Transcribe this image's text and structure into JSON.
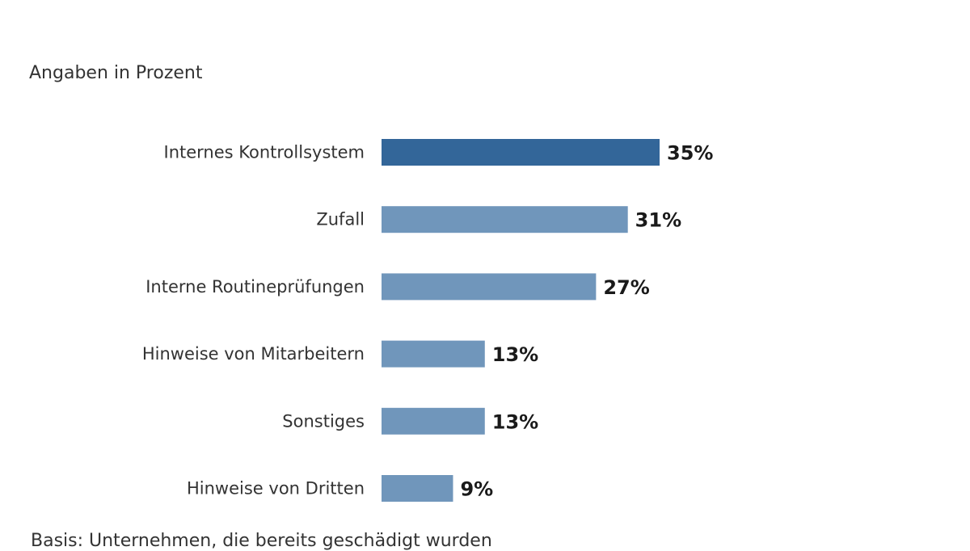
{
  "chart_data": {
    "type": "bar",
    "orientation": "horizontal",
    "subtitle": "Angaben in Prozent",
    "categories": [
      "Internes Kontrollsystem",
      "Zufall",
      "Interne Routineprüfungen",
      "Hinweise von Mitarbeitern",
      "Sonstiges",
      "Hinweise von Dritten"
    ],
    "values": [
      35,
      31,
      27,
      13,
      13,
      9
    ],
    "data_labels": [
      "35%",
      "31%",
      "27%",
      "13%",
      "13%",
      "9%"
    ],
    "xlim": [
      0,
      35
    ],
    "grid": false,
    "colors": {
      "highlight": "#336699",
      "default": "#7096bb"
    },
    "footnote": "Basis: Unternehmen, die bereits geschädigt wurden"
  }
}
